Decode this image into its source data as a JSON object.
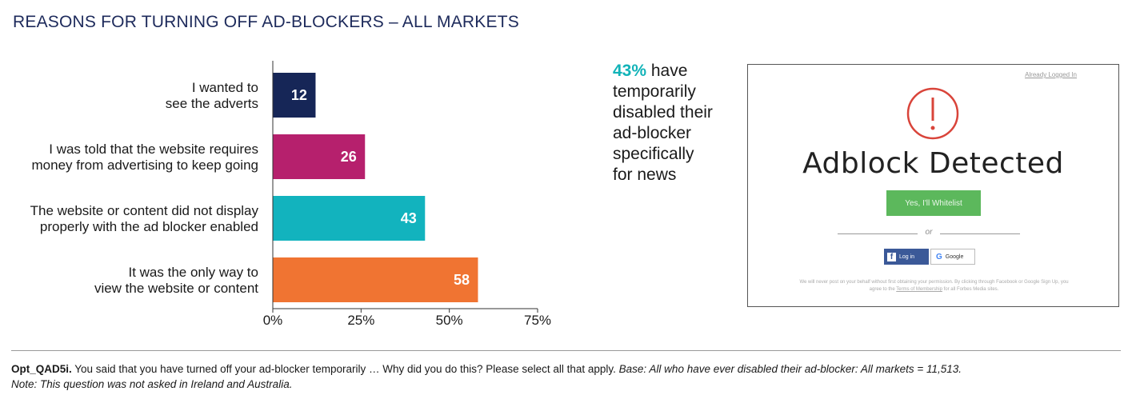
{
  "title": "REASONS FOR TURNING OFF AD-BLOCKERS – ALL MARKETS",
  "chart_data": {
    "type": "bar",
    "orientation": "horizontal",
    "title": "REASONS FOR TURNING OFF AD-BLOCKERS – ALL MARKETS",
    "categories": [
      [
        "I wanted to",
        "see the adverts"
      ],
      [
        "I was told that the website requires",
        "money from advertising to keep going"
      ],
      [
        "The website or content did not display",
        "properly with the ad blocker enabled"
      ],
      [
        "It was the only way to",
        "view the website or content"
      ]
    ],
    "values": [
      12,
      26,
      43,
      58
    ],
    "value_labels": [
      "12",
      "26",
      "43",
      "58"
    ],
    "bar_colors": [
      "#162657",
      "#b6206d",
      "#12b3be",
      "#f07432"
    ],
    "xlim": [
      0,
      75
    ],
    "ticks": [
      0,
      25,
      50,
      75
    ],
    "tick_labels": [
      "0%",
      "25%",
      "50%",
      "75%"
    ],
    "xlabel": "",
    "ylabel": "",
    "grid": false
  },
  "stat": {
    "value": "43%",
    "text_lines": [
      "have",
      "temporarily",
      "disabled their",
      "ad-blocker",
      "specifically",
      "for news"
    ],
    "accent_color": "#12b3b8"
  },
  "ad_panel": {
    "signin_link": "Already Logged In",
    "heading": "Adblock Detected",
    "whitelist_button": "Yes, I'll Whitelist",
    "or_text": "or",
    "facebook_button": "Log in",
    "google_button": "Google",
    "fine_print_pre": "We will never post on your behalf without first obtaining your permission. By clicking through Facebook or Google Sign Up, you agree to the",
    "fine_print_link": "Terms of Membership",
    "fine_print_post": "for all Forbes Media sites."
  },
  "footer": {
    "question_code": "Opt_QAD5i.",
    "question_text": " You said that you have turned off your ad-blocker temporarily … Why did you do this? Please select all that apply. ",
    "base_text": "Base: All who have ever disabled their ad-blocker: All markets = 11,513.",
    "note_text": "Note: This question was not asked in Ireland and Australia."
  }
}
